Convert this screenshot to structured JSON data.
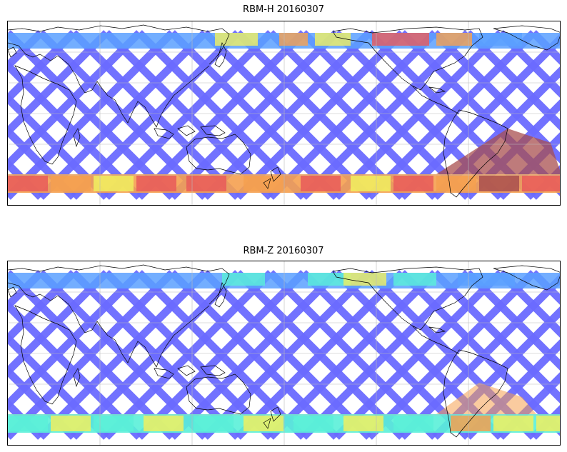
{
  "figure": {
    "panels": [
      {
        "title": "RBM-H 20160307",
        "polar_color": "#e85a5a",
        "south_accent": "#a84f4f"
      },
      {
        "title": "RBM-Z 20160307",
        "polar_color": "#8ff0d8",
        "south_accent": "#f5f05a"
      }
    ],
    "colors": {
      "swath_low": "#6a6aff",
      "swath_mid": "#5aa0ff",
      "teal": "#5af0d8",
      "yellow": "#f0f060",
      "orange": "#f5a050",
      "red": "#e85a5a",
      "coast": "#000000",
      "grid": "#bbbbbb"
    }
  }
}
